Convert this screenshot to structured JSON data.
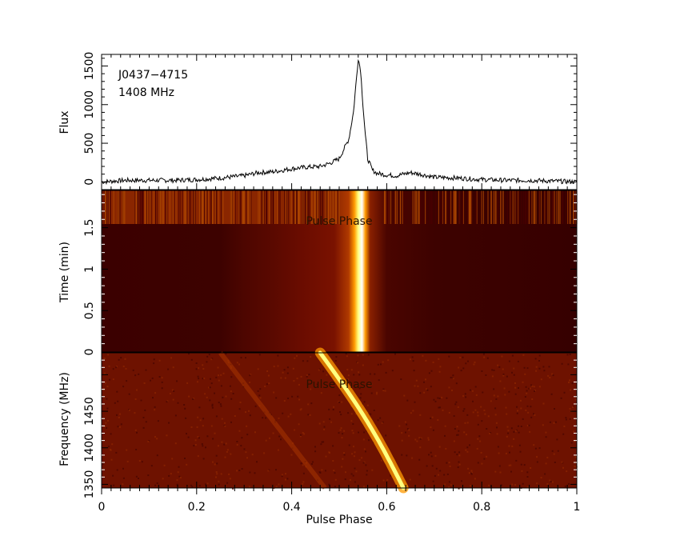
{
  "chart_data": [
    {
      "panel": "profile",
      "type": "line",
      "annotations": [
        "J0437−4715",
        "1408 MHz"
      ],
      "ylabel": "Flux",
      "xlim": [
        0,
        1
      ],
      "ylim": [
        -100,
        1650
      ],
      "yticks": [
        0,
        500,
        1000,
        1500
      ],
      "x": [
        0,
        0.05,
        0.1,
        0.15,
        0.2,
        0.25,
        0.3,
        0.33,
        0.36,
        0.4,
        0.43,
        0.46,
        0.48,
        0.5,
        0.52,
        0.53,
        0.535,
        0.54,
        0.545,
        0.55,
        0.555,
        0.56,
        0.57,
        0.58,
        0.6,
        0.62,
        0.65,
        0.67,
        0.7,
        0.75,
        0.8,
        0.85,
        0.9,
        0.95,
        1.0
      ],
      "y": [
        0,
        20,
        20,
        20,
        30,
        50,
        80,
        120,
        130,
        170,
        190,
        200,
        240,
        300,
        550,
        900,
        1250,
        1600,
        1450,
        1000,
        600,
        300,
        150,
        110,
        90,
        80,
        120,
        100,
        60,
        50,
        30,
        20,
        20,
        10,
        0
      ]
    },
    {
      "panel": "phase-time",
      "type": "heatmap",
      "overlay_text": "Pulse Phase",
      "ylabel": "Time (min)",
      "xlim": [
        0,
        1
      ],
      "ylim": [
        0,
        1.95
      ],
      "yticks": [
        0,
        0.5,
        1,
        1.5
      ],
      "colormap": [
        "#000000",
        "#3a0000",
        "#7a0d00",
        "#c24400",
        "#ff9a00",
        "#ffffa0",
        "#ffffff"
      ]
    },
    {
      "panel": "phase-frequency",
      "type": "heatmap",
      "overlay_text": "Pulse Phase",
      "xlabel": "Pulse Phase",
      "ylabel": "Frequency (MHz)",
      "xlim": [
        0,
        1
      ],
      "ylim": [
        1345,
        1530
      ],
      "xticks": [
        0,
        0.2,
        0.4,
        0.6,
        0.8,
        1
      ],
      "yticks": [
        1350,
        1400,
        1450
      ]
    }
  ]
}
